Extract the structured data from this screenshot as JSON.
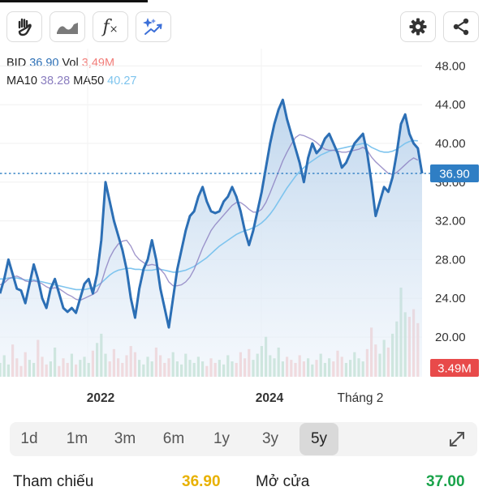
{
  "toolbar": {
    "left_buttons": [
      {
        "icon": "hand-draw-icon"
      },
      {
        "icon": "chart-style-icon"
      },
      {
        "icon": "fx-indicator-icon",
        "glyph": "f"
      },
      {
        "icon": "ai-trend-icon"
      }
    ],
    "right_buttons": [
      {
        "icon": "gear-icon"
      },
      {
        "icon": "share-icon"
      }
    ]
  },
  "legend": {
    "symbol": "BID",
    "price": "36.90",
    "vol_label": "Vol",
    "vol_value": "3,49M",
    "ma10_label": "MA10",
    "ma10_value": "38.28",
    "ma50_label": "MA50",
    "ma50_value": "40.27"
  },
  "colors": {
    "price_line": "#2c6fb5",
    "price_fill_top": "#bcd4ec",
    "ma10": "#8a7dbf",
    "ma50": "#7ec4ee",
    "vol_up": "#8ec9a4",
    "vol_down": "#f2a7a5",
    "current_badge": "#2f7ec4",
    "vol_badge": "#e84a4a",
    "ref_price": "#e8b100",
    "open_price": "#19a34a"
  },
  "chart_data": {
    "type": "line",
    "y_ticks": [
      "48.00",
      "44.00",
      "40.00",
      "36.00",
      "32.00",
      "28.00",
      "24.00",
      "20.00"
    ],
    "ylim": [
      18.0,
      48.0
    ],
    "x_tick_labels": [
      "2022",
      "2024",
      "Tháng 2"
    ],
    "current_price_label": "36.90",
    "current_price": 36.9,
    "volume_label": "3.49M",
    "series": [
      {
        "name": "BID",
        "values": [
          24.5,
          26,
          28,
          26.5,
          25,
          24.8,
          23.5,
          25.5,
          27.5,
          26,
          24,
          23,
          25,
          26,
          24.5,
          23,
          22.6,
          23,
          22.5,
          24,
          25.5,
          26,
          24.5,
          26.5,
          30,
          36,
          34,
          32,
          30.5,
          29,
          27,
          24,
          22,
          25,
          27,
          28,
          30,
          28,
          25,
          23,
          21,
          24,
          27,
          29,
          31,
          32.5,
          33,
          34.5,
          35.5,
          34,
          33,
          32.8,
          33,
          34,
          34.5,
          35.5,
          34.5,
          33,
          31,
          29.5,
          31,
          33,
          35,
          37.5,
          40,
          42,
          43.5,
          44.5,
          42.5,
          41,
          39.5,
          38,
          36,
          38.5,
          40,
          39,
          39.5,
          40.5,
          41,
          40,
          39,
          37.5,
          38,
          39,
          40,
          40.5,
          41,
          39,
          36,
          32.5,
          34,
          35.5,
          35,
          36.5,
          39,
          42,
          43,
          41,
          40,
          39.5,
          36.9
        ]
      },
      {
        "name": "MA10",
        "values": [
          25.4,
          25.6,
          26.0,
          26.2,
          26.3,
          26.1,
          25.8,
          25.7,
          25.8,
          25.7,
          25.5,
          25.2,
          25.0,
          25.1,
          25.0,
          24.7,
          24.4,
          24.2,
          23.9,
          23.8,
          24.0,
          24.2,
          24.4,
          24.7,
          25.6,
          27.0,
          28.2,
          29.0,
          29.6,
          29.9,
          30.0,
          29.4,
          28.5,
          28.0,
          27.7,
          27.4,
          27.5,
          27.4,
          27.0,
          26.5,
          25.7,
          25.3,
          25.3,
          25.4,
          25.7,
          26.2,
          27.0,
          28.1,
          29.2,
          30.1,
          31.0,
          31.6,
          32.1,
          32.6,
          33.1,
          33.6,
          33.9,
          33.9,
          33.6,
          33.2,
          32.9,
          32.9,
          33.2,
          33.9,
          34.9,
          36.0,
          37.1,
          38.2,
          39.1,
          39.9,
          40.6,
          40.9,
          40.8,
          40.6,
          40.4,
          40.1,
          39.7,
          39.4,
          39.3,
          39.3,
          39.2,
          39.1,
          39.1,
          39.2,
          39.3,
          39.4,
          39.6,
          39.3,
          38.6,
          38.1,
          37.7,
          37.3,
          36.9,
          36.8,
          37.0,
          37.4,
          37.8,
          38.2,
          38.5,
          38.28
        ]
      },
      {
        "name": "MA50",
        "values": [
          26.0,
          26.0,
          26.1,
          26.1,
          26.1,
          26.0,
          25.9,
          25.9,
          25.9,
          25.8,
          25.7,
          25.6,
          25.5,
          25.4,
          25.3,
          25.2,
          25.1,
          25.0,
          24.9,
          24.9,
          24.9,
          25.0,
          25.1,
          25.3,
          25.6,
          26.0,
          26.4,
          26.7,
          26.9,
          27.0,
          27.1,
          27.1,
          27.0,
          27.0,
          26.9,
          26.9,
          26.9,
          27.0,
          27.0,
          26.9,
          26.8,
          26.7,
          26.7,
          26.8,
          26.9,
          27.1,
          27.3,
          27.6,
          27.9,
          28.2,
          28.6,
          29.0,
          29.4,
          29.7,
          30.0,
          30.3,
          30.6,
          30.8,
          31.0,
          31.1,
          31.3,
          31.5,
          31.8,
          32.2,
          32.7,
          33.3,
          34.0,
          34.7,
          35.4,
          36.0,
          36.6,
          37.1,
          37.5,
          37.9,
          38.2,
          38.5,
          38.8,
          39.0,
          39.2,
          39.3,
          39.4,
          39.5,
          39.6,
          39.7,
          39.8,
          39.9,
          40.0,
          39.9,
          39.6,
          39.4,
          39.2,
          39.1,
          39.1,
          39.2,
          39.4,
          39.7,
          40.0,
          40.2,
          40.3,
          40.27
        ]
      }
    ],
    "volume": [
      0.9,
      1.4,
      0.8,
      2.1,
      1.2,
      0.7,
      1.6,
      1.1,
      0.9,
      2.4,
      1.3,
      0.8,
      1.0,
      1.9,
      0.7,
      1.2,
      0.9,
      1.5,
      0.8,
      1.1,
      1.3,
      0.9,
      1.7,
      2.2,
      2.8,
      1.5,
      1.0,
      1.8,
      1.2,
      0.9,
      1.4,
      2.0,
      1.6,
      1.1,
      0.8,
      1.3,
      1.0,
      1.9,
      1.4,
      0.9,
      1.2,
      1.6,
      1.0,
      0.8,
      1.5,
      1.1,
      0.9,
      1.3,
      1.0,
      0.7,
      1.2,
      0.9,
      1.1,
      0.8,
      1.4,
      1.0,
      0.9,
      1.6,
      1.2,
      1.8,
      1.1,
      1.5,
      2.0,
      2.6,
      1.4,
      1.2,
      1.9,
      1.0,
      1.3,
      1.1,
      0.9,
      1.4,
      1.0,
      1.2,
      0.8,
      1.1,
      1.5,
      0.9,
      1.2,
      1.0,
      1.7,
      1.3,
      0.9,
      1.1,
      1.6,
      1.2,
      1.0,
      1.8,
      3.2,
      2.1,
      1.5,
      2.4,
      1.9,
      2.8,
      3.6,
      5.8,
      4.2,
      3.9,
      4.4,
      3.49
    ]
  },
  "ranges": {
    "items": [
      "1d",
      "1m",
      "3m",
      "6m",
      "1y",
      "3y",
      "5y"
    ],
    "active": "5y",
    "expand_icon": "expand-icon"
  },
  "bottom": {
    "ref_label": "Tham chiếu",
    "ref_value": "36.90",
    "open_label": "Mở cửa",
    "open_value": "37.00"
  }
}
